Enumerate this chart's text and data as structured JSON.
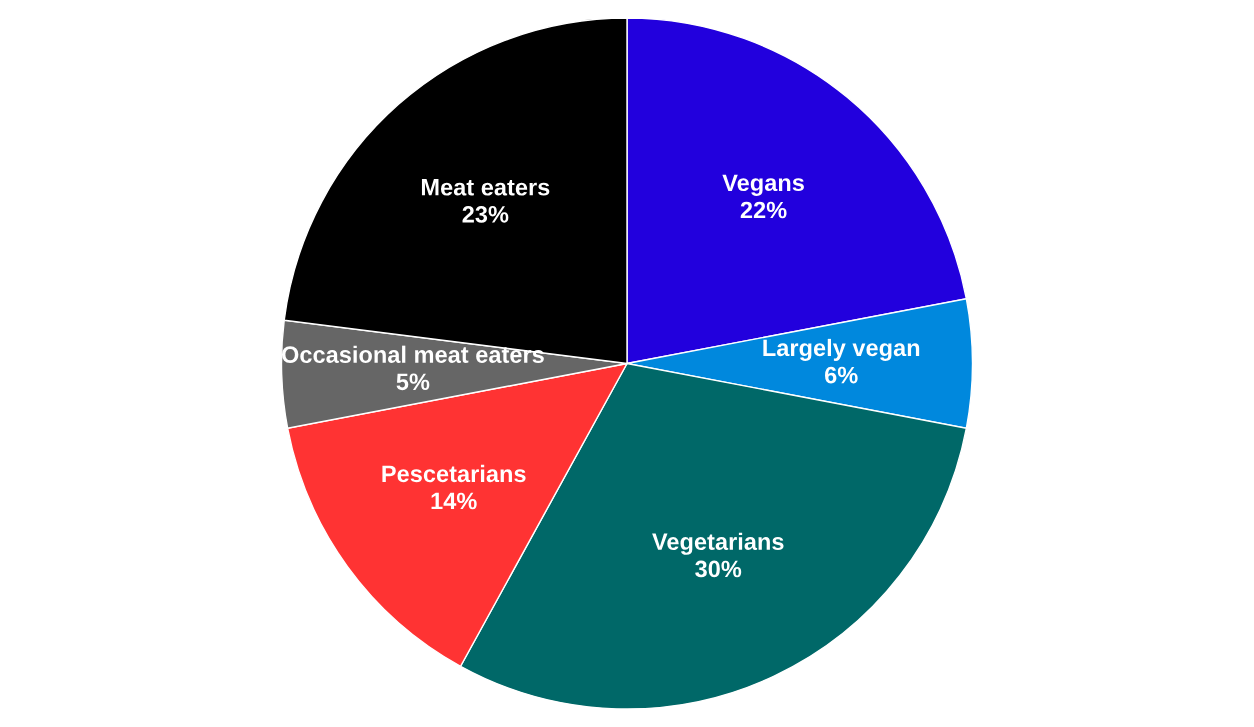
{
  "chart_data": {
    "type": "pie",
    "categories": [
      "Vegans",
      "Largely vegan",
      "Vegetarians",
      "Pescetarians",
      "Occasional meat eaters",
      "Meat eaters"
    ],
    "values": [
      22,
      6,
      30,
      14,
      5,
      23
    ],
    "value_labels": [
      "22%",
      "6%",
      "30%",
      "14%",
      "5%",
      "23%"
    ],
    "colors": [
      "#2200dd",
      "#0088dd",
      "#006868",
      "#ff3333",
      "#666666",
      "#000000"
    ],
    "legend": false
  }
}
